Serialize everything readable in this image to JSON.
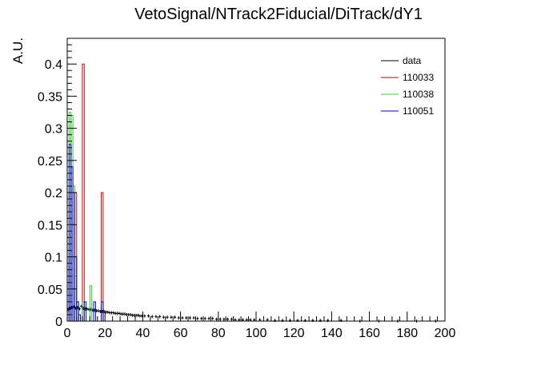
{
  "chart_data": {
    "type": "histogram",
    "title": "VetoSignal/NTrack2Fiducial/DiTrack/dY1",
    "xlabel": "",
    "ylabel": "A.U.",
    "xlim": [
      0,
      200
    ],
    "ylim": [
      0,
      0.44
    ],
    "x_ticks": [
      0,
      20,
      40,
      60,
      80,
      100,
      120,
      140,
      160,
      180,
      200
    ],
    "y_ticks": [
      0,
      0.05,
      0.1,
      0.15,
      0.2,
      0.25,
      0.3,
      0.35,
      0.4
    ],
    "x_tick_labels": [
      "0",
      "20",
      "40",
      "60",
      "80",
      "100",
      "120",
      "140",
      "160",
      "180",
      "200"
    ],
    "y_tick_labels": [
      "0",
      "0.05",
      "0.1",
      "0.15",
      "0.2",
      "0.25",
      "0.3",
      "0.35",
      "0.4"
    ],
    "bin_width": 1,
    "grid": false,
    "legend_position": "top-right",
    "series": [
      {
        "name": "data",
        "color": "#000000",
        "style": "points",
        "x": [
          0.5,
          1.5,
          2.5,
          3.5,
          4.5,
          5.5,
          6.5,
          7.5,
          8.5,
          9.5,
          10.5,
          11.5,
          12.5,
          13.5,
          14.5,
          15.5,
          16.5,
          17.5,
          18.5,
          19.5,
          20.5,
          21.5,
          22.5,
          23.5,
          24.5,
          25.5,
          26.5,
          27.5,
          28.5,
          29.5,
          30.5,
          31.5,
          32.5,
          33.5,
          34.5,
          35.5,
          36.5,
          37.5,
          38.5,
          39.5,
          41,
          43,
          45,
          47,
          49,
          51,
          53,
          55,
          57,
          59,
          61,
          63,
          65,
          67,
          69,
          71,
          73,
          75,
          77,
          79,
          81,
          83,
          85,
          87,
          89,
          91,
          93,
          95,
          97,
          99,
          102,
          106,
          110,
          114,
          118,
          122,
          126,
          130,
          134,
          138,
          145,
          155,
          165,
          175,
          185,
          195
        ],
        "y": [
          0.018,
          0.02,
          0.021,
          0.022,
          0.02,
          0.021,
          0.019,
          0.023,
          0.02,
          0.019,
          0.019,
          0.018,
          0.018,
          0.017,
          0.017,
          0.016,
          0.016,
          0.015,
          0.015,
          0.015,
          0.014,
          0.014,
          0.013,
          0.013,
          0.013,
          0.012,
          0.012,
          0.012,
          0.011,
          0.011,
          0.011,
          0.01,
          0.01,
          0.01,
          0.009,
          0.009,
          0.009,
          0.009,
          0.008,
          0.008,
          0.008,
          0.008,
          0.007,
          0.007,
          0.007,
          0.006,
          0.006,
          0.006,
          0.006,
          0.005,
          0.005,
          0.005,
          0.005,
          0.005,
          0.004,
          0.004,
          0.004,
          0.004,
          0.004,
          0.003,
          0.003,
          0.003,
          0.003,
          0.003,
          0.002,
          0.002,
          0.002,
          0.002,
          0.002,
          0.002,
          0.002,
          0.002,
          0.001,
          0.001,
          0.001,
          0.001,
          0.001,
          0.001,
          0.001,
          0.001,
          0.001,
          0,
          0,
          0,
          0,
          0
        ]
      },
      {
        "name": "110033",
        "color": "#cc0000",
        "style": "hist",
        "x": [
          0.5,
          1.5,
          2.5,
          3.5,
          4.5,
          5.5,
          6.5,
          7.5,
          8.5,
          9.5,
          10.5,
          11.5,
          12.5,
          13.5,
          14.5,
          15.5,
          16.5,
          17.5,
          18.5,
          19.5,
          20.5
        ],
        "y": [
          0,
          0.2,
          0,
          0,
          0.2,
          0,
          0,
          0,
          0.4,
          0,
          0,
          0,
          0,
          0,
          0,
          0,
          0,
          0,
          0.2,
          0,
          0
        ]
      },
      {
        "name": "110038",
        "color": "#33cc33",
        "style": "hist",
        "x": [
          0.5,
          1.5,
          2.5,
          3.5,
          4.5,
          5.5,
          6.5,
          7.5,
          8.5,
          9.5,
          10.5,
          11.5,
          12.5,
          13.5,
          14.5,
          15.5,
          16.5,
          17.5,
          18.5,
          19.5,
          20.5
        ],
        "y": [
          0.13,
          0.325,
          0.32,
          0.21,
          0.07,
          0.03,
          0,
          0,
          0.03,
          0,
          0,
          0,
          0.055,
          0,
          0,
          0,
          0,
          0,
          0,
          0,
          0
        ]
      },
      {
        "name": "110051",
        "color": "#0000cc",
        "style": "hist",
        "x": [
          0.5,
          1.5,
          2.5,
          3.5,
          4.5,
          5.5,
          6.5,
          7.5,
          8.5,
          9.5,
          10.5,
          11.5,
          12.5,
          13.5,
          14.5,
          15.5,
          16.5,
          17.5,
          18.5,
          19.5,
          20.5
        ],
        "y": [
          0.1,
          0.275,
          0.24,
          0.2,
          0.1,
          0.03,
          0.01,
          0,
          0,
          0.03,
          0,
          0,
          0,
          0,
          0.03,
          0,
          0,
          0,
          0.03,
          0,
          0
        ]
      }
    ]
  }
}
